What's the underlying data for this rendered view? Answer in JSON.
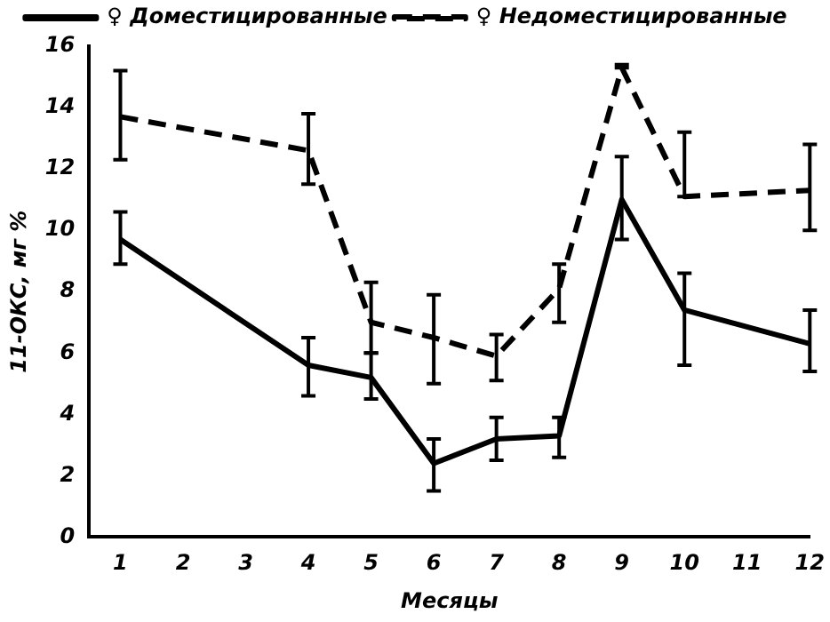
{
  "chart_data": {
    "type": "line",
    "xlabel": "Месяцы",
    "ylabel": "11-ОКС, мг %",
    "xlim": [
      0.5,
      12
    ],
    "xticks": [
      1,
      2,
      3,
      4,
      5,
      6,
      7,
      8,
      9,
      10,
      11,
      12
    ],
    "ylim": [
      0,
      16
    ],
    "yticks": [
      0,
      2,
      4,
      6,
      8,
      10,
      12,
      14,
      16
    ],
    "grid": false,
    "legend": "top",
    "marker": "none",
    "series": [
      {
        "name": "♀ Доместицированные",
        "color": "#000000",
        "line_style": "solid",
        "x": [
          1,
          4,
          5,
          6,
          7,
          8,
          9,
          10,
          12
        ],
        "values": [
          9.7,
          5.6,
          5.2,
          2.4,
          3.2,
          3.3,
          11.0,
          7.4,
          6.3
        ],
        "errors": [
          [
            8.9,
            10.6
          ],
          [
            4.6,
            6.5
          ],
          [
            4.5,
            6.0
          ],
          [
            1.5,
            3.2
          ],
          [
            2.5,
            3.9
          ],
          [
            2.6,
            3.9
          ],
          [
            9.7,
            12.4
          ],
          [
            5.6,
            8.6
          ],
          [
            5.4,
            7.4
          ]
        ]
      },
      {
        "name": "♀ Недоместицированные",
        "color": "#000000",
        "line_style": "dashed",
        "x": [
          1,
          4,
          5,
          6,
          7,
          8,
          9,
          10,
          12
        ],
        "values": [
          13.7,
          12.6,
          7.0,
          6.5,
          5.9,
          8.1,
          15.3,
          11.1,
          11.3
        ],
        "errors": [
          [
            12.3,
            15.2
          ],
          [
            11.5,
            13.8
          ],
          [
            6.0,
            8.3
          ],
          [
            5.0,
            7.9
          ],
          [
            5.1,
            6.6
          ],
          [
            7.0,
            8.9
          ],
          [
            15.3,
            15.4
          ],
          [
            11.1,
            13.2
          ],
          [
            10.0,
            12.8
          ]
        ]
      }
    ]
  }
}
